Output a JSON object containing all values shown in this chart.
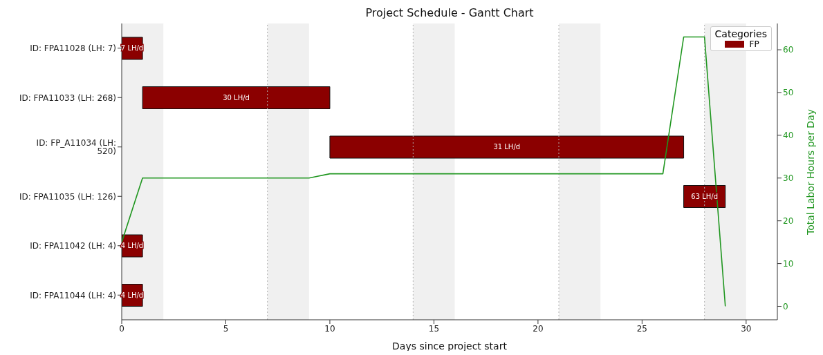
{
  "chart_data": [
    {
      "type": "bar",
      "orientation": "horizontal",
      "title": "Project Schedule - Gantt Chart",
      "xlabel": "Days since project start",
      "legend_title": "Categories",
      "legend": "top right",
      "grid": false,
      "categories": [
        "ID: FPA11028 (LH: 7)",
        "ID: FPA11033 (LH: 268)",
        "ID: FP_A11034 (LH: 520)",
        "ID: FPA11035 (LH: 126)",
        "ID: FPA11042 (LH: 4)",
        "ID: FPA11044 (LH: 4)"
      ],
      "series": [
        {
          "type": "bar",
          "name": "FP",
          "color": "#8b0000",
          "base": [
            0,
            1,
            10,
            27,
            0,
            0
          ],
          "values": [
            1,
            9,
            17,
            2,
            1,
            1
          ]
        }
      ],
      "annotations": [
        "7 LH/d",
        "30 LH/d",
        "31 LH/d",
        "63 LH/d",
        "4 LH/d",
        "4 LH/d"
      ],
      "xlim": [
        0,
        31.5
      ],
      "xticks": [
        0,
        5,
        10,
        15,
        20,
        25,
        30
      ],
      "bands": [
        {
          "axis": "x",
          "from": 0,
          "to": 2,
          "color": "#f0f0f0"
        },
        {
          "axis": "x",
          "from": 7,
          "to": 9,
          "color": "#f0f0f0"
        },
        {
          "axis": "x",
          "from": 14,
          "to": 16,
          "color": "#f0f0f0"
        },
        {
          "axis": "x",
          "from": 21,
          "to": 23,
          "color": "#f0f0f0"
        },
        {
          "axis": "x",
          "from": 28,
          "to": 30,
          "color": "#f0f0f0"
        }
      ],
      "ref_lines": [
        {
          "axis": "x",
          "value": 7,
          "color": "#b0b0b0",
          "line_style": "dotted"
        },
        {
          "axis": "x",
          "value": 14,
          "color": "#b0b0b0",
          "line_style": "dotted"
        },
        {
          "axis": "x",
          "value": 21,
          "color": "#b0b0b0",
          "line_style": "dotted"
        },
        {
          "axis": "x",
          "value": 28,
          "color": "#b0b0b0",
          "line_style": "dotted"
        }
      ]
    },
    {
      "type": "line",
      "y2label": "Total Labor Hours per Day",
      "tick_labels": "y",
      "xlim": [
        0,
        31.5
      ],
      "y2lim": [
        -3.15,
        66.15
      ],
      "y2ticks": [
        0,
        10,
        20,
        30,
        40,
        50,
        60
      ],
      "series": [
        {
          "type": "line",
          "axis": "y2",
          "color": "#1f961f",
          "x": [
            0,
            1,
            2,
            3,
            4,
            5,
            6,
            7,
            8,
            9,
            10,
            11,
            12,
            13,
            14,
            15,
            16,
            17,
            18,
            19,
            20,
            21,
            22,
            23,
            24,
            25,
            26,
            27,
            28,
            29
          ],
          "values": [
            15,
            30,
            30,
            30,
            30,
            30,
            30,
            30,
            30,
            30,
            31,
            31,
            31,
            31,
            31,
            31,
            31,
            31,
            31,
            31,
            31,
            31,
            31,
            31,
            31,
            31,
            31,
            63,
            63,
            0
          ]
        }
      ]
    }
  ]
}
